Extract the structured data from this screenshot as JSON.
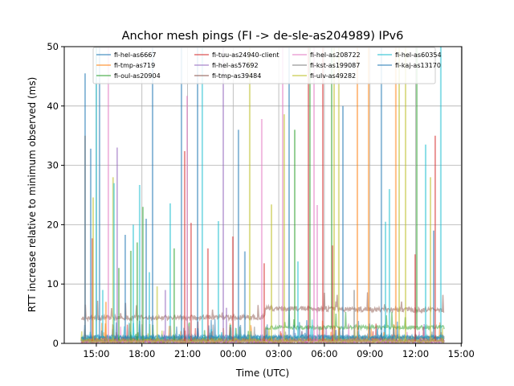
{
  "chart_data": {
    "type": "line",
    "title": "Anchor mesh pings (FI -> de-sle-as204989) IPv6",
    "xlabel": "Time (UTC)",
    "ylabel": "RTT increase relative to minimum observed (ms)",
    "x_unit": "hours since 15:00 on day 1",
    "xlim": [
      -2.11,
      24.04
    ],
    "ylim": [
      0,
      50
    ],
    "grid": true,
    "legend_placement": "top-center",
    "x_ticks": [
      {
        "value": 0,
        "label": "15:00"
      },
      {
        "value": 3,
        "label": "18:00"
      },
      {
        "value": 6,
        "label": "21:00"
      },
      {
        "value": 9,
        "label": "00:00"
      },
      {
        "value": 12,
        "label": "03:00"
      },
      {
        "value": 15,
        "label": "06:00"
      },
      {
        "value": 18,
        "label": "09:00"
      },
      {
        "value": 21,
        "label": "12:00"
      },
      {
        "value": 24,
        "label": "15:00"
      }
    ],
    "y_ticks": [
      0,
      10,
      20,
      30,
      40,
      50
    ],
    "x_range_of_data": [
      -1.0,
      22.9
    ],
    "series": [
      {
        "name": "fi-hel-as6667",
        "color": "#1f77b4",
        "baseline": [
          [
            -1,
            0.8
          ],
          [
            22.9,
            0.8
          ]
        ]
      },
      {
        "name": "fi-tmp-as719",
        "color": "#ff7f0e",
        "baseline": [
          [
            -1,
            0.6
          ],
          [
            22.9,
            0.9
          ]
        ]
      },
      {
        "name": "fi-oul-as20904",
        "color": "#2ca02c",
        "baseline": [
          [
            -1,
            0.5
          ],
          [
            11.1,
            0.5
          ],
          [
            11.1,
            2.7
          ],
          [
            22.9,
            2.7
          ]
        ]
      },
      {
        "name": "fi-tuu-as24940-client",
        "color": "#d62728",
        "baseline": [
          [
            -1,
            0.4
          ],
          [
            22.9,
            0.4
          ]
        ]
      },
      {
        "name": "fi-hel-as57692",
        "color": "#9467bd",
        "baseline": [
          [
            -1,
            0.3
          ],
          [
            22.9,
            0.3
          ]
        ]
      },
      {
        "name": "fi-tmp-as39484",
        "color": "#8c564b",
        "baseline": [
          [
            -1,
            4.3
          ],
          [
            11.1,
            4.4
          ],
          [
            11.1,
            5.9
          ],
          [
            22.9,
            5.6
          ]
        ]
      },
      {
        "name": "fi-hel-as208722",
        "color": "#e377c2",
        "baseline": [
          [
            -1,
            0.3
          ],
          [
            22.9,
            0.3
          ]
        ]
      },
      {
        "name": "fi-kst-as199087",
        "color": "#7f7f7f",
        "baseline": [
          [
            -1,
            0.6
          ],
          [
            22.9,
            0.6
          ]
        ]
      },
      {
        "name": "fi-ulv-as49282",
        "color": "#bcbd22",
        "baseline": [
          [
            -1,
            0.4
          ],
          [
            22.9,
            0.4
          ]
        ]
      },
      {
        "name": "fi-hel-as60354",
        "color": "#17becf",
        "baseline": [
          [
            -1,
            1.0
          ],
          [
            22.9,
            1.0
          ]
        ]
      },
      {
        "name": "fi-kaj-as13170",
        "color": "#1f77b4",
        "baseline": [
          [
            -1,
            1.1
          ],
          [
            22.9,
            1.1
          ]
        ]
      }
    ],
    "spikes": [
      [
        0,
        -0.74,
        45.5
      ],
      [
        7,
        -0.74,
        35
      ],
      [
        0,
        -0.37,
        32.8
      ],
      [
        3,
        -0.26,
        17.7
      ],
      [
        8,
        -0.21,
        24.6
      ],
      [
        9,
        0,
        50
      ],
      [
        0,
        0.21,
        50
      ],
      [
        9,
        0.42,
        9
      ],
      [
        1,
        0.63,
        7
      ],
      [
        6,
        0.79,
        50
      ],
      [
        8,
        1.1,
        28
      ],
      [
        9,
        1.16,
        27
      ],
      [
        4,
        1.37,
        33
      ],
      [
        2,
        1.48,
        12.7
      ],
      [
        0,
        1.9,
        18.3
      ],
      [
        2,
        2.27,
        15.6
      ],
      [
        9,
        2.43,
        20
      ],
      [
        2,
        2.69,
        17
      ],
      [
        9,
        2.85,
        26.7
      ],
      [
        2,
        3.06,
        23
      ],
      [
        0,
        3.28,
        21
      ],
      [
        9,
        3.49,
        12
      ],
      [
        0,
        3.7,
        50
      ],
      [
        8,
        4.0,
        9.6
      ],
      [
        4,
        4.54,
        9
      ],
      [
        9,
        4.86,
        23.6
      ],
      [
        2,
        5.12,
        16
      ],
      [
        0,
        5.6,
        50
      ],
      [
        3,
        5.81,
        32.4
      ],
      [
        6,
        5.97,
        41.7
      ],
      [
        3,
        6.23,
        20.3
      ],
      [
        0,
        6.66,
        50
      ],
      [
        9,
        6.97,
        50
      ],
      [
        3,
        7.34,
        16
      ],
      [
        9,
        8.03,
        20.6
      ],
      [
        4,
        8.35,
        50
      ],
      [
        4,
        8.56,
        6
      ],
      [
        3,
        8.98,
        18
      ],
      [
        0,
        9.35,
        36
      ],
      [
        0,
        9.77,
        15.5
      ],
      [
        8,
        10.09,
        50
      ],
      [
        6,
        10.88,
        37.8
      ],
      [
        3,
        11.04,
        13.5
      ],
      [
        8,
        11.52,
        23.4
      ],
      [
        6,
        12.26,
        50
      ],
      [
        8,
        12.36,
        38.6
      ],
      [
        0,
        12.68,
        50
      ],
      [
        2,
        13.05,
        36
      ],
      [
        9,
        13.26,
        13.8
      ],
      [
        3,
        13.95,
        50
      ],
      [
        2,
        14.05,
        50
      ],
      [
        6,
        14.32,
        50
      ],
      [
        6,
        14.53,
        23.3
      ],
      [
        3,
        14.9,
        50
      ],
      [
        2,
        15.48,
        50
      ],
      [
        3,
        15.53,
        16.5
      ],
      [
        8,
        15.64,
        50
      ],
      [
        8,
        15.95,
        50
      ],
      [
        0,
        16.22,
        40
      ],
      [
        7,
        16.96,
        9
      ],
      [
        1,
        17.17,
        50
      ],
      [
        1,
        17.91,
        50
      ],
      [
        0,
        18.75,
        50
      ],
      [
        9,
        19.02,
        20.5
      ],
      [
        9,
        19.28,
        26
      ],
      [
        1,
        19.7,
        50
      ],
      [
        8,
        19.92,
        50
      ],
      [
        8,
        20.34,
        50
      ],
      [
        3,
        20.97,
        15
      ],
      [
        2,
        21.08,
        50
      ],
      [
        9,
        21.66,
        33.5
      ],
      [
        8,
        21.98,
        28
      ],
      [
        0,
        22.19,
        19
      ],
      [
        3,
        22.29,
        35
      ],
      [
        9,
        22.66,
        50
      ]
    ]
  }
}
